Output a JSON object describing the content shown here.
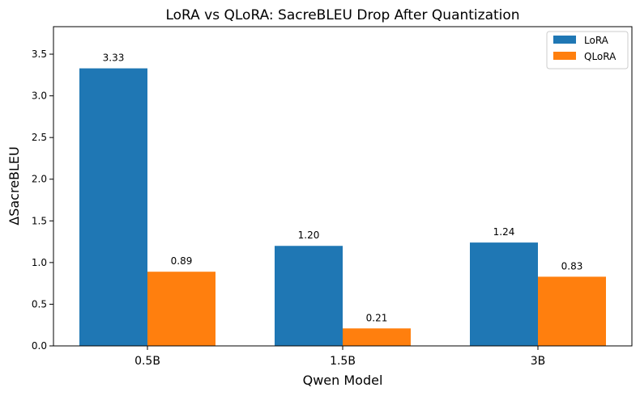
{
  "chart_data": {
    "type": "bar",
    "title": "LoRA vs QLoRA: SacreBLEU Drop After Quantization",
    "xlabel": "Qwen Model",
    "ylabel": "ΔSacreBLEU",
    "categories": [
      "0.5B",
      "1.5B",
      "3B"
    ],
    "series": [
      {
        "name": "LoRA",
        "color": "#1f77b4",
        "values": [
          3.33,
          1.2,
          1.24
        ],
        "labels": [
          "3.33",
          "1.20",
          "1.24"
        ]
      },
      {
        "name": "QLoRA",
        "color": "#ff7f0e",
        "values": [
          0.89,
          0.21,
          0.83
        ],
        "labels": [
          "0.89",
          "0.21",
          "0.83"
        ]
      }
    ],
    "ylim": [
      0,
      3.83
    ],
    "yticks": [
      0.0,
      0.5,
      1.0,
      1.5,
      2.0,
      2.5,
      3.0,
      3.5
    ],
    "ytick_labels": [
      "0.0",
      "0.5",
      "1.0",
      "1.5",
      "2.0",
      "2.5",
      "3.0",
      "3.5"
    ],
    "grid": false,
    "legend_position": "top-right"
  }
}
